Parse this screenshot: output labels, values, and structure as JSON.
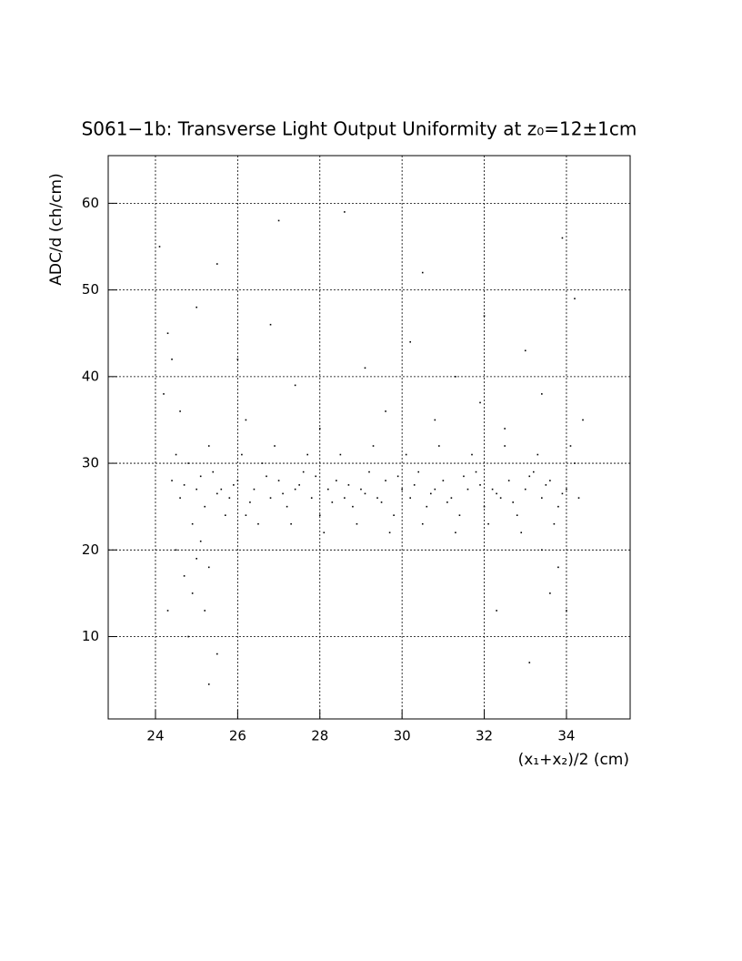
{
  "chart_data": {
    "type": "scatter",
    "title": "S061−1b: Transverse Light Output Uniformity at z₀=12±1cm",
    "xlabel": "(x₁+x₂)/2 (cm)",
    "ylabel": "ADC/d (ch/cm)",
    "xlim": [
      22.85,
      35.55
    ],
    "ylim": [
      0.5,
      65.5
    ],
    "xticks": [
      24,
      26,
      28,
      30,
      32,
      34
    ],
    "yticks": [
      10,
      20,
      30,
      40,
      50,
      60
    ],
    "grid": true,
    "color": "#000000",
    "x": [
      24.4,
      24.6,
      24.8,
      25.0,
      25.2,
      25.4,
      25.6,
      25.8,
      26.0,
      26.2,
      26.4,
      26.6,
      26.8,
      27.0,
      27.2,
      27.4,
      27.6,
      27.8,
      28.0,
      28.2,
      28.4,
      28.6,
      28.8,
      29.0,
      29.2,
      29.4,
      29.6,
      29.8,
      30.0,
      30.2,
      30.4,
      30.6,
      30.8,
      31.0,
      31.2,
      31.4,
      31.6,
      31.8,
      32.0,
      32.2,
      32.4,
      32.6,
      32.8,
      33.0,
      33.2,
      33.4,
      33.6,
      33.8,
      34.0,
      34.2,
      24.5,
      24.9,
      25.3,
      25.7,
      26.1,
      26.5,
      26.9,
      27.3,
      27.7,
      28.1,
      28.5,
      28.9,
      29.3,
      29.7,
      30.1,
      30.5,
      30.9,
      31.3,
      31.7,
      32.1,
      32.5,
      32.9,
      33.3,
      33.7,
      34.1,
      34.3,
      24.7,
      25.1,
      25.5,
      25.9,
      26.3,
      26.7,
      27.1,
      27.5,
      27.9,
      28.3,
      28.7,
      29.1,
      29.5,
      29.9,
      30.3,
      30.7,
      31.1,
      31.5,
      31.9,
      32.3,
      32.7,
      33.1,
      33.5,
      33.9,
      24.2,
      24.3,
      24.1,
      24.4,
      24.6,
      25.0,
      25.5,
      26.2,
      26.8,
      27.4,
      28.0,
      28.6,
      29.1,
      29.6,
      30.2,
      30.8,
      31.3,
      31.9,
      32.5,
      33.0,
      33.4,
      33.9,
      34.2,
      34.4,
      27.0,
      30.5,
      26.0,
      32.0,
      24.5,
      24.7,
      24.9,
      25.0,
      25.1,
      25.2,
      25.3,
      24.8,
      25.5,
      25.3,
      24.3,
      33.6,
      33.8,
      34.0,
      33.1,
      32.3,
      33.4
    ],
    "y": [
      28,
      26,
      30,
      27,
      25,
      29,
      27,
      26,
      28,
      24,
      27,
      30,
      26,
      28,
      25,
      27,
      29,
      26,
      24,
      27,
      28,
      26,
      25,
      27,
      29,
      26,
      28,
      24,
      27,
      26,
      29,
      25,
      27,
      28,
      26,
      24,
      27,
      29,
      25,
      27,
      26,
      28,
      24,
      27,
      29,
      26,
      28,
      25,
      27,
      30,
      31,
      23,
      32,
      24,
      31,
      23,
      32,
      23,
      31,
      22,
      31,
      23,
      32,
      22,
      31,
      23,
      32,
      22,
      31,
      23,
      32,
      22,
      31,
      23,
      32,
      26,
      27.5,
      28.5,
      26.5,
      27.5,
      25.5,
      28.5,
      26.5,
      27.5,
      28.5,
      25.5,
      27.5,
      26.5,
      25.5,
      28.5,
      27.5,
      26.5,
      25.5,
      28.5,
      27.5,
      26.5,
      25.5,
      28.5,
      27.5,
      26.5,
      38,
      45,
      55,
      42,
      36,
      48,
      53,
      35,
      46,
      39,
      34,
      59,
      41,
      36,
      44,
      35,
      40,
      37,
      34,
      43,
      38,
      56,
      49,
      35,
      58,
      52,
      42,
      47,
      20,
      17,
      15,
      19,
      21,
      13,
      18,
      10,
      8,
      4.5,
      13,
      15,
      18,
      13,
      7,
      13,
      20
    ]
  }
}
